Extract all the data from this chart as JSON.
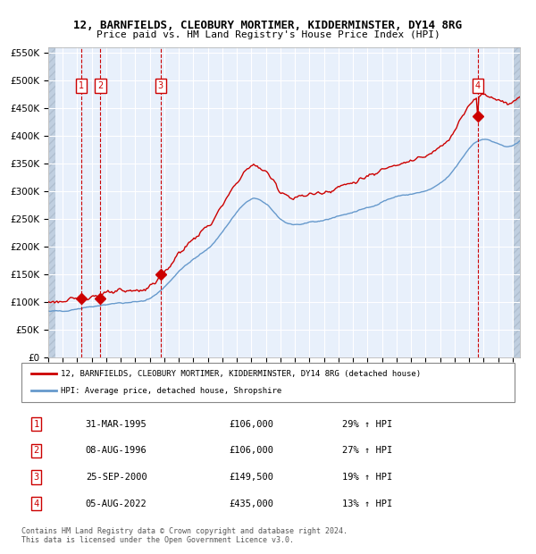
{
  "title1": "12, BARNFIELDS, CLEOBURY MORTIMER, KIDDERMINSTER, DY14 8RG",
  "title2": "Price paid vs. HM Land Registry's House Price Index (HPI)",
  "legend_line1": "12, BARNFIELDS, CLEOBURY MORTIMER, KIDDERMINSTER, DY14 8RG (detached house)",
  "legend_line2": "HPI: Average price, detached house, Shropshire",
  "footnote1": "Contains HM Land Registry data © Crown copyright and database right 2024.",
  "footnote2": "This data is licensed under the Open Government Licence v3.0.",
  "transactions": [
    {
      "num": 1,
      "date": "31-MAR-1995",
      "price": 106000,
      "pct": "29%",
      "dir": "↑"
    },
    {
      "num": 2,
      "date": "08-AUG-1996",
      "price": 106000,
      "pct": "27%",
      "dir": "↑"
    },
    {
      "num": 3,
      "date": "25-SEP-2000",
      "price": 149500,
      "pct": "19%",
      "dir": "↑"
    },
    {
      "num": 4,
      "date": "05-AUG-2022",
      "price": 435000,
      "pct": "13%",
      "dir": "↑"
    }
  ],
  "transaction_years": [
    1995.25,
    1996.6,
    2000.73,
    2022.59
  ],
  "transaction_prices": [
    106000,
    106000,
    149500,
    435000
  ],
  "ylim": [
    0,
    560000
  ],
  "yticks": [
    0,
    50000,
    100000,
    150000,
    200000,
    250000,
    300000,
    350000,
    400000,
    450000,
    500000,
    550000
  ],
  "xmin": 1993.0,
  "xmax": 2025.5,
  "bg_color": "#dce9f8",
  "plot_bg": "#e8f0fb",
  "hatch_color": "#c0cfe0",
  "red_line_color": "#cc0000",
  "blue_line_color": "#6699cc",
  "dashed_red": "#cc0000",
  "marker_color": "#cc0000",
  "box_color": "#cc0000",
  "grid_color": "#ffffff",
  "minor_grid_color": "#d0d8e8"
}
